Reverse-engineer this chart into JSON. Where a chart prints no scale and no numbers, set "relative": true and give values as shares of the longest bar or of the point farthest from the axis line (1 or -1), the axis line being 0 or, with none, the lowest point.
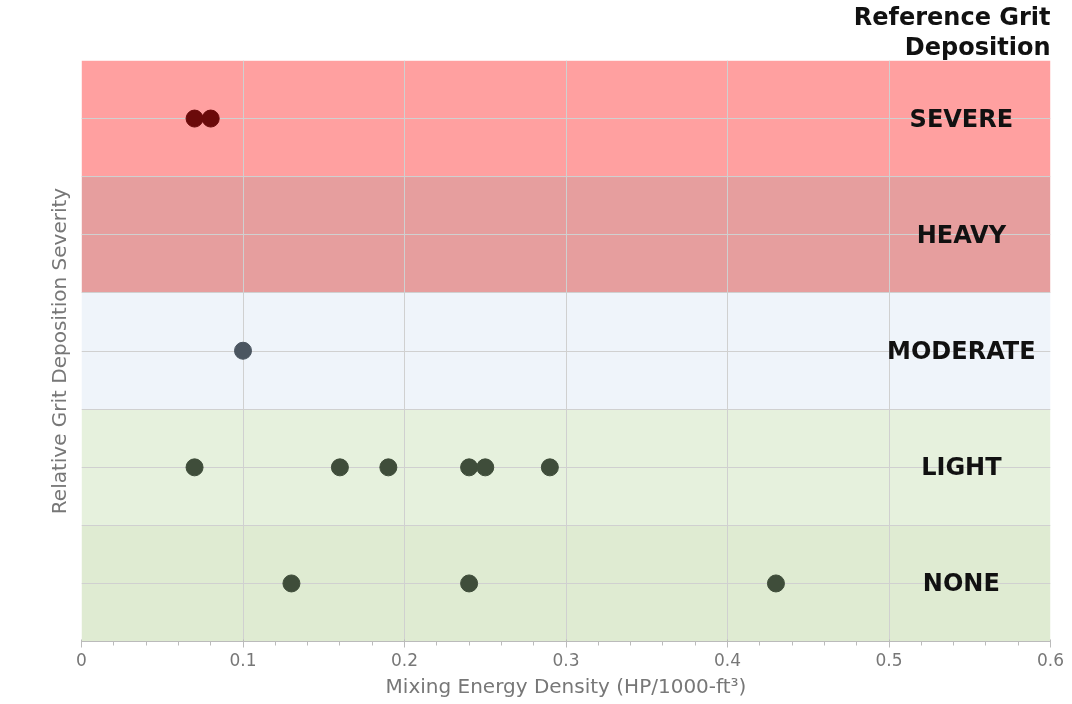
{
  "chart_data": {
    "type": "scatter",
    "xlabel": "Mixing Energy Density (HP/1000-ft³)",
    "ylabel": "Relative Grit Deposition Severity",
    "annotations": [
      "Reference Grit",
      "Deposition"
    ],
    "xlim": [
      0,
      0.6
    ],
    "xticks": [
      0,
      0.1,
      0.2,
      0.3,
      0.4,
      0.5,
      0.6
    ],
    "relative": true,
    "tick_labels": "x",
    "grid": true,
    "marker": "circle",
    "bands": [
      {
        "axis": "y",
        "from": 0.889,
        "to": 1.111,
        "label": "SEVERE",
        "color": "#ffa0a0"
      },
      {
        "axis": "y",
        "from": 0.667,
        "to": 0.889,
        "label": "HEAVY",
        "color": "#e69e9e"
      },
      {
        "axis": "y",
        "from": 0.444,
        "to": 0.667,
        "label": "MODERATE",
        "color": "#eff4fa"
      },
      {
        "axis": "y",
        "from": 0.222,
        "to": 0.444,
        "label": "LIGHT",
        "color": "#e6f1dd"
      },
      {
        "axis": "y",
        "from": 0,
        "to": 0.222,
        "label": "NONE",
        "color": "#dfebd2"
      }
    ],
    "series": [
      {
        "color": "#6b0a0a",
        "x": [
          0.07,
          0.08
        ],
        "values": [
          1,
          1
        ]
      },
      {
        "color": "#4b5560",
        "x": [
          0.1
        ],
        "values": [
          0.556
        ]
      },
      {
        "color": "#3f4d3a",
        "x": [
          0.07,
          0.16,
          0.19,
          0.24,
          0.25,
          0.29,
          0.13,
          0.24,
          0.43
        ],
        "values": [
          0.333,
          0.333,
          0.333,
          0.333,
          0.333,
          0.333,
          0.111,
          0.111,
          0.111
        ]
      }
    ]
  }
}
